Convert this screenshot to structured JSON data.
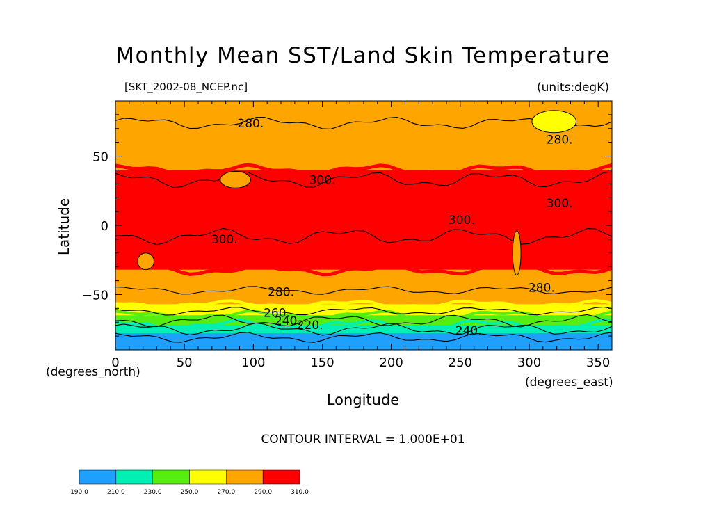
{
  "header": {
    "title": "Monthly Mean SST/Land Skin Temperature",
    "file_label": "[SKT_2002-08_NCEP.nc]",
    "units_label": "(units:degK)"
  },
  "axes": {
    "xlabel": "Longitude",
    "ylabel": "Latitude",
    "x_unit": "(degrees_east)",
    "y_unit": "(degrees_north)"
  },
  "contour_note": "CONTOUR INTERVAL = 1.000E+01",
  "chart_data": {
    "type": "heatmap",
    "title": "Monthly Mean SST/Land Skin Temperature",
    "xlabel": "Longitude",
    "ylabel": "Latitude",
    "xlim": [
      0,
      360
    ],
    "ylim": [
      -90,
      90
    ],
    "x_ticks": [
      0,
      50,
      100,
      150,
      200,
      250,
      300,
      350
    ],
    "y_ticks": [
      50,
      0,
      -50
    ],
    "x_tick_labels": [
      "0",
      "50",
      "100",
      "150",
      "200",
      "250",
      "300",
      "350"
    ],
    "y_tick_labels": [
      "50",
      "0",
      "−50"
    ],
    "contour_interval": 10,
    "colorbar": {
      "boundaries": [
        190,
        210,
        230,
        250,
        270,
        290,
        310
      ],
      "labels": [
        "190.0",
        "210.0",
        "230.0",
        "250.0",
        "270.0",
        "290.0",
        "310.0"
      ],
      "colors": [
        "#1fa0ff",
        "#00f0b4",
        "#55ee10",
        "#ffff00",
        "#ffa500",
        "#ff0000"
      ]
    },
    "zonal_bands": [
      {
        "lat_top": 90,
        "lat_bottom": 40,
        "value_range": [
          270,
          290
        ],
        "color": "#ffa500"
      },
      {
        "lat_top": 40,
        "lat_bottom": -32,
        "value_range": [
          290,
          310
        ],
        "color": "#ff0000"
      },
      {
        "lat_top": -32,
        "lat_bottom": -57,
        "value_range": [
          270,
          290
        ],
        "color": "#ffa500"
      },
      {
        "lat_top": -57,
        "lat_bottom": -65,
        "value_range": [
          250,
          270
        ],
        "color": "#ffff00"
      },
      {
        "lat_top": -65,
        "lat_bottom": -72,
        "value_range": [
          230,
          250
        ],
        "color": "#55ee10"
      },
      {
        "lat_top": -72,
        "lat_bottom": -78,
        "value_range": [
          210,
          230
        ],
        "color": "#00f0b4"
      },
      {
        "lat_top": -78,
        "lat_bottom": -90,
        "value_range": [
          190,
          210
        ],
        "color": "#1fa0ff"
      }
    ],
    "contour_labels": [
      {
        "text": "280.",
        "lon": 98,
        "lat": 74
      },
      {
        "text": "280.",
        "lon": 322,
        "lat": 62
      },
      {
        "text": "300.",
        "lon": 150,
        "lat": 33
      },
      {
        "text": "300.",
        "lon": 322,
        "lat": 16
      },
      {
        "text": "300.",
        "lon": 251,
        "lat": 4
      },
      {
        "text": "300.",
        "lon": 79,
        "lat": -10
      },
      {
        "text": "280.",
        "lon": 120,
        "lat": -48
      },
      {
        "text": "280.",
        "lon": 309,
        "lat": -45
      },
      {
        "text": "260.",
        "lon": 117,
        "lat": -63
      },
      {
        "text": "240.",
        "lon": 125,
        "lat": -69
      },
      {
        "text": "220.",
        "lon": 141,
        "lat": -72
      },
      {
        "text": "240.",
        "lon": 256,
        "lat": -76
      }
    ]
  }
}
